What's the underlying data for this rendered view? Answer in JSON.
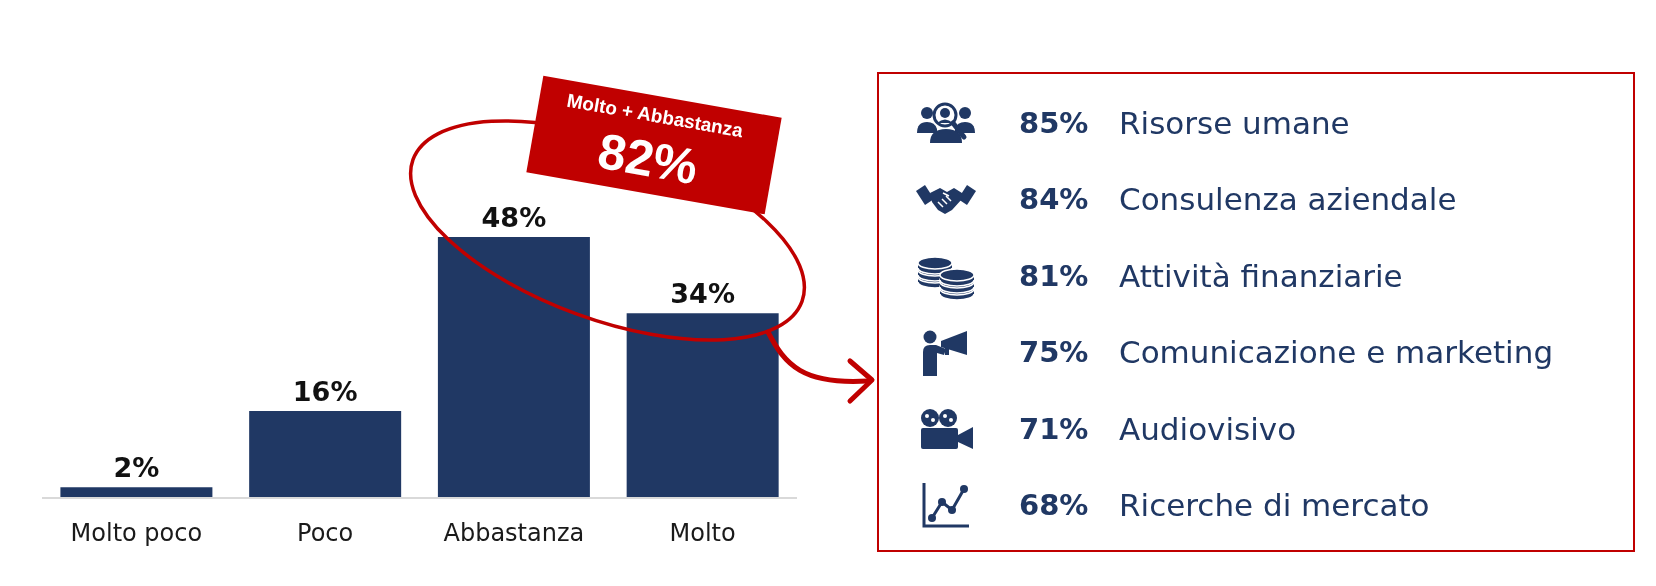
{
  "chart_data": [
    {
      "type": "bar",
      "categories": [
        "Molto poco",
        "Poco",
        "Abbastanza",
        "Molto"
      ],
      "values": [
        2,
        16,
        48,
        34
      ],
      "color": "#203864",
      "value_labels": [
        "2%",
        "16%",
        "48%",
        "34%"
      ],
      "annotations": [
        "Molto + Abbastanza",
        "82%"
      ],
      "tick_labels": "x"
    },
    {
      "type": "other",
      "categories": [
        "Risorse umane",
        "Consulenza aziendale",
        "Attività finanziarie",
        "Comunicazione e marketing",
        "Audiovisivo",
        "Ricerche di mercato"
      ],
      "values": [
        85,
        84,
        81,
        75,
        71,
        68
      ],
      "value_labels": [
        "85%",
        "84%",
        "81%",
        "75%",
        "71%",
        "68%"
      ],
      "color": "#203864"
    }
  ]
}
